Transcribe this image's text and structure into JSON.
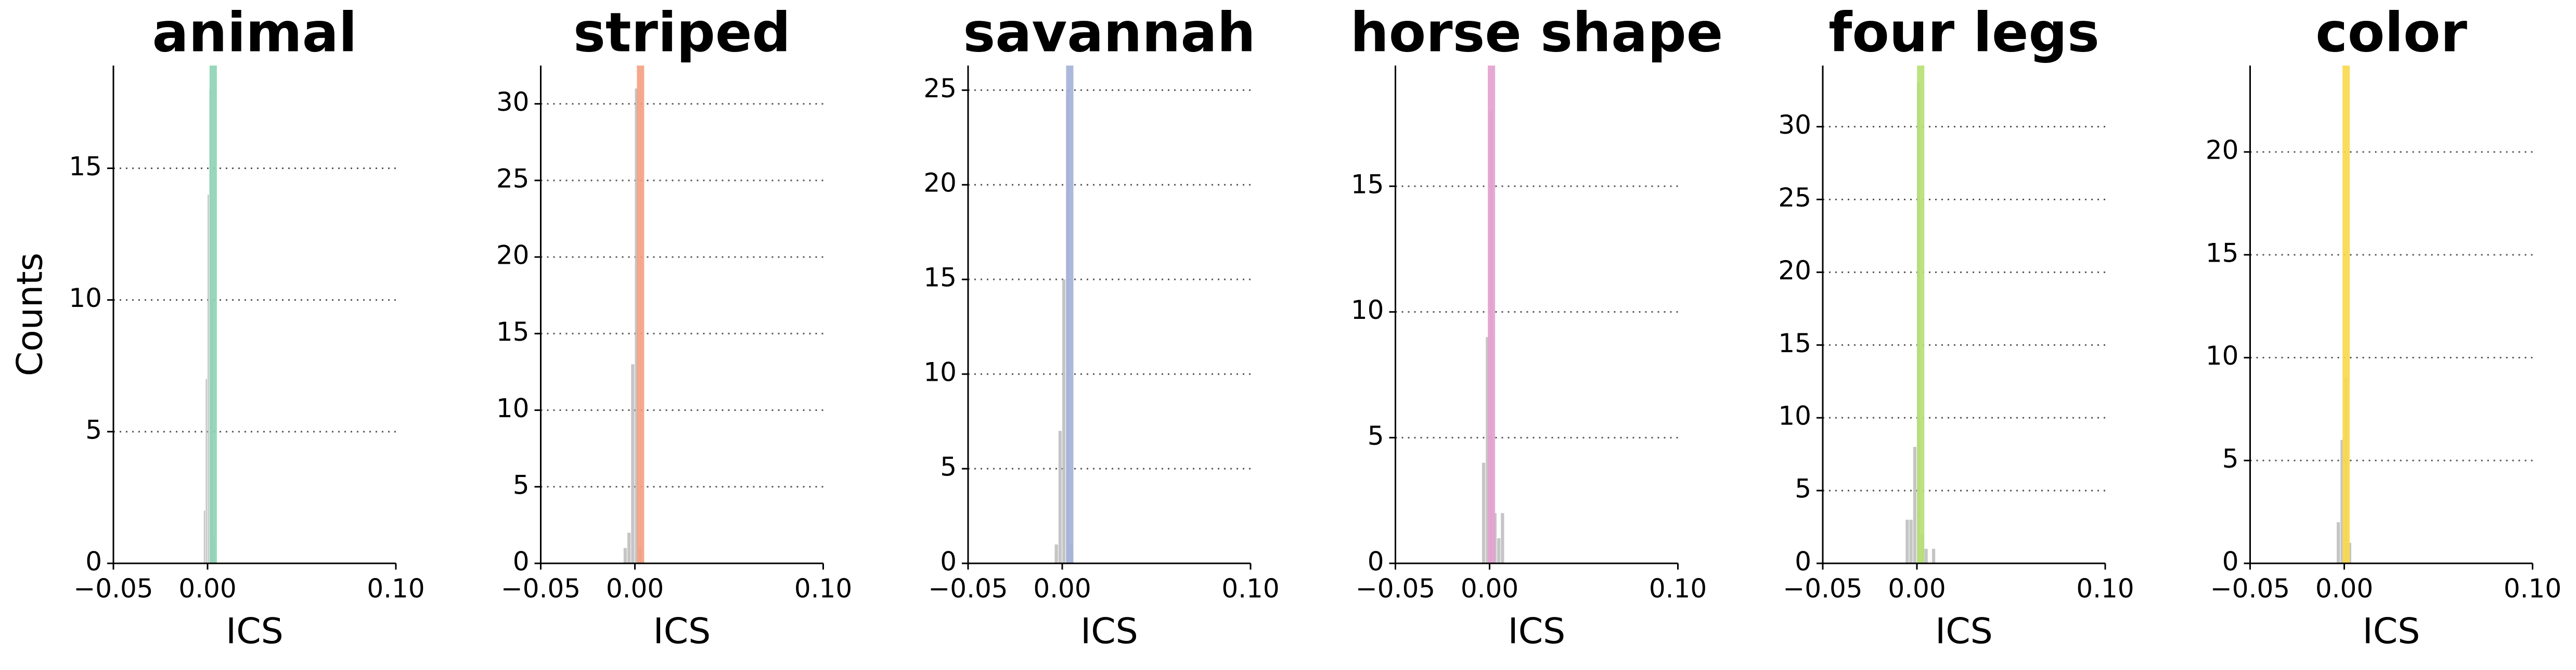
{
  "chart_data": [
    {
      "type": "histogram",
      "title": "animal",
      "xlabel": "ICS",
      "ylabel": "Counts",
      "bins": [
        -0.002,
        -0.001,
        0,
        0.001,
        0.002,
        0.003,
        0.004
      ],
      "counts": [
        2,
        7,
        14,
        18,
        10,
        1
      ],
      "color": "#bbbbbb",
      "vline": {
        "x": 0.003,
        "color": "#8dd3b5"
      },
      "xlim": [
        -0.05,
        0.1
      ],
      "xticks": [
        {
          "value": -0.05,
          "label": "−0.05"
        },
        {
          "value": 0,
          "label": "0.00"
        },
        {
          "value": 0.1,
          "label": "0.10"
        }
      ],
      "ylim": [
        0,
        18.9
      ],
      "yticks": [
        0,
        5,
        10,
        15
      ],
      "grid": true
    },
    {
      "type": "histogram",
      "title": "striped",
      "xlabel": "ICS",
      "bins": [
        -0.006,
        -0.004,
        -0.002,
        0,
        0.002,
        0.004
      ],
      "counts": [
        1,
        2,
        13,
        31,
        1
      ],
      "color": "#bbbbbb",
      "vline": {
        "x": 0.003,
        "color": "#f4a07f"
      },
      "xlim": [
        -0.05,
        0.1
      ],
      "xticks": [
        {
          "value": -0.05,
          "label": "−0.05"
        },
        {
          "value": 0,
          "label": "0.00"
        },
        {
          "value": 0.1,
          "label": "0.10"
        }
      ],
      "ylim": [
        0,
        32.5
      ],
      "yticks": [
        0,
        5,
        10,
        15,
        20,
        25,
        30
      ],
      "grid": true
    },
    {
      "type": "histogram",
      "title": "savannah",
      "xlabel": "ICS",
      "bins": [
        -0.004,
        -0.002,
        0,
        0.002,
        0.004,
        0.006
      ],
      "counts": [
        1,
        7,
        15,
        25,
        1
      ],
      "color": "#bbbbbb",
      "vline": {
        "x": 0.004,
        "color": "#a3b1d8"
      },
      "xlim": [
        -0.05,
        0.1
      ],
      "xticks": [
        {
          "value": -0.05,
          "label": "−0.05"
        },
        {
          "value": 0,
          "label": "0.00"
        },
        {
          "value": 0.1,
          "label": "0.10"
        }
      ],
      "ylim": [
        0,
        26.3
      ],
      "yticks": [
        0,
        5,
        10,
        15,
        20,
        25
      ],
      "grid": true
    },
    {
      "type": "histogram",
      "title": "horse shape",
      "xlabel": "ICS",
      "bins": [
        -0.004,
        -0.002,
        0,
        0.002,
        0.004,
        0.006,
        0.008
      ],
      "counts": [
        4,
        9,
        18,
        2,
        1,
        2
      ],
      "color": "#bbbbbb",
      "vline": {
        "x": 0.001,
        "color": "#e3a0cf"
      },
      "xlim": [
        -0.05,
        0.1
      ],
      "xticks": [
        {
          "value": -0.05,
          "label": "−0.05"
        },
        {
          "value": 0,
          "label": "0.00"
        },
        {
          "value": 0.1,
          "label": "0.10"
        }
      ],
      "ylim": [
        0,
        19.8
      ],
      "yticks": [
        0,
        5,
        10,
        15
      ],
      "grid": true
    },
    {
      "type": "histogram",
      "title": "four legs",
      "xlabel": "ICS",
      "bins": [
        -0.006,
        -0.004,
        -0.002,
        0,
        0.002,
        0.004,
        0.006,
        0.008,
        0.01
      ],
      "counts": [
        3,
        3,
        8,
        33,
        2,
        1,
        0,
        1
      ],
      "color": "#bbbbbb",
      "vline": {
        "x": 0.002,
        "color": "#b6df72"
      },
      "xlim": [
        -0.05,
        0.1
      ],
      "xticks": [
        {
          "value": -0.05,
          "label": "−0.05"
        },
        {
          "value": 0,
          "label": "0.00"
        },
        {
          "value": 0.1,
          "label": "0.10"
        }
      ],
      "ylim": [
        0,
        34.2
      ],
      "yticks": [
        0,
        5,
        10,
        15,
        20,
        25,
        30
      ],
      "grid": true
    },
    {
      "type": "histogram",
      "title": "color",
      "xlabel": "ICS",
      "bins": [
        -0.004,
        -0.002,
        0,
        0.002,
        0.004
      ],
      "counts": [
        2,
        6,
        9,
        1
      ],
      "color": "#bbbbbb",
      "vline": {
        "x": 0.001,
        "color": "#f9d84a"
      },
      "xlim": [
        -0.05,
        0.1
      ],
      "xticks": [
        {
          "value": -0.05,
          "label": "−0.05"
        },
        {
          "value": 0,
          "label": "0.00"
        },
        {
          "value": 0.1,
          "label": "0.10"
        }
      ],
      "ylim": [
        0,
        24.2
      ],
      "yticks": [
        0,
        5,
        10,
        15,
        20
      ],
      "grid": true
    }
  ]
}
